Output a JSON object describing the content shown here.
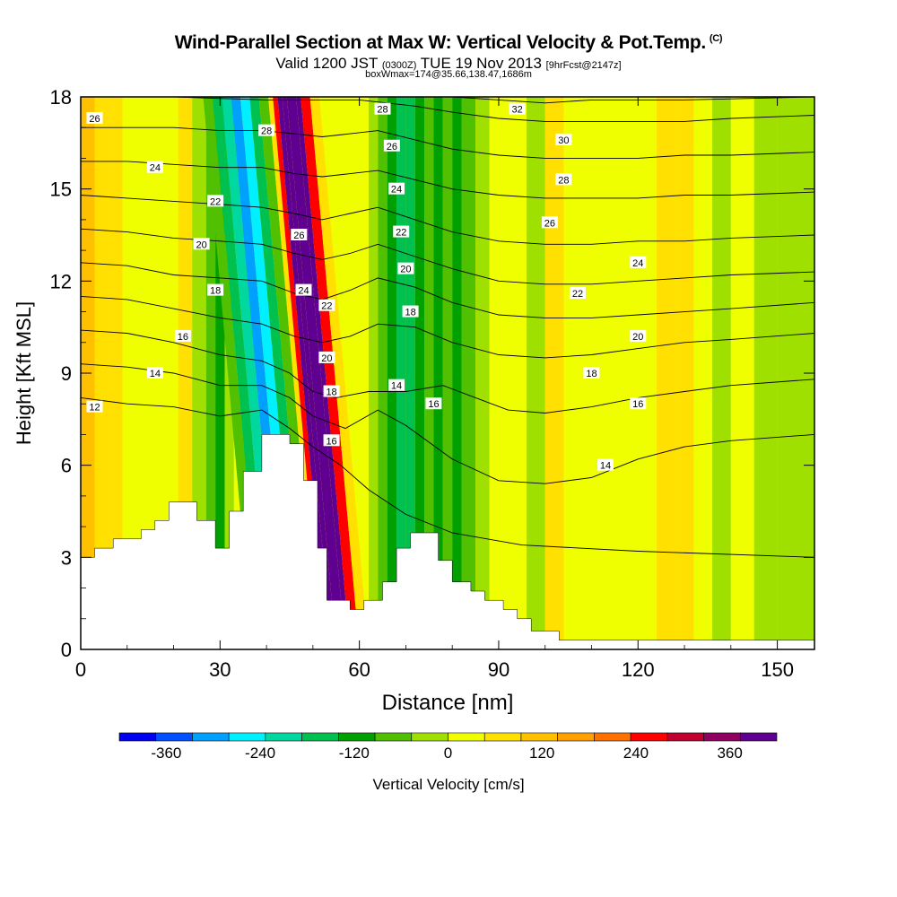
{
  "chart_data": {
    "type": "heatmap",
    "title": "Wind-Parallel Section at Max W: Vertical Velocity & Pot.Temp.",
    "title_mark": "(C)",
    "subtitle_main_1": "Valid 1200 JST",
    "subtitle_small_1": "(0300Z)",
    "subtitle_main_2": "TUE 19 Nov 2013",
    "subtitle_small_2": "[9hrFcst@2147z]",
    "subtitle2": "boxWmax=174@35.66,138.47,1686m",
    "xlabel": "Distance [nm]",
    "ylabel": "Height [Kft MSL]",
    "xlim": [
      0,
      158
    ],
    "ylim": [
      0,
      18
    ],
    "xticks": [
      "0",
      "30",
      "60",
      "90",
      "120",
      "150"
    ],
    "yticks": [
      "0",
      "3",
      "6",
      "9",
      "12",
      "15",
      "18"
    ],
    "colorbar": {
      "label": "Vertical Velocity [cm/s]",
      "tick_labels": [
        "-360",
        "-240",
        "-120",
        "0",
        "120",
        "240",
        "360"
      ],
      "colors": [
        "#0000f0",
        "#0050ff",
        "#00a0ff",
        "#00f0ff",
        "#00d8a0",
        "#00c050",
        "#00a000",
        "#50c000",
        "#a0e000",
        "#f0ff00",
        "#ffe000",
        "#ffc000",
        "#ffa000",
        "#ff7000",
        "#ff0000",
        "#c00030",
        "#900060",
        "#600090"
      ]
    },
    "velocity_columns": [
      {
        "x": 0,
        "w": 3
      },
      {
        "x": 3,
        "w": 2
      },
      {
        "x": 6,
        "w": 2
      },
      {
        "x": 9,
        "w": 1
      },
      {
        "x": 12,
        "w": 1
      },
      {
        "x": 15,
        "w": 1
      },
      {
        "x": 18,
        "w": 1
      },
      {
        "x": 21,
        "w": 2
      },
      {
        "x": 24,
        "w": 0
      },
      {
        "x": 27,
        "w": -1
      },
      {
        "x": 29,
        "w": -2
      },
      {
        "x": 31,
        "w": 0
      },
      {
        "x": 33,
        "w": 1
      },
      {
        "x": 35,
        "w": 0
      },
      {
        "x": 37,
        "w": -1
      },
      {
        "x": 39,
        "w": -3
      },
      {
        "x": 41,
        "w": -4
      },
      {
        "x": 43,
        "w": -6
      },
      {
        "x": 45,
        "w": -5
      },
      {
        "x": 47,
        "w": -3
      },
      {
        "x": 49,
        "w": -1
      },
      {
        "x": 51,
        "w": 2
      },
      {
        "x": 52,
        "w": 6
      },
      {
        "x": 53,
        "w": 10
      },
      {
        "x": 54,
        "w": 14
      },
      {
        "x": 55,
        "w": 16
      },
      {
        "x": 57,
        "w": 12
      },
      {
        "x": 58,
        "w": 6
      },
      {
        "x": 60,
        "w": 2
      },
      {
        "x": 62,
        "w": 0
      },
      {
        "x": 64,
        "w": -1
      },
      {
        "x": 66,
        "w": -2
      },
      {
        "x": 68,
        "w": -3
      },
      {
        "x": 70,
        "w": -3
      },
      {
        "x": 72,
        "w": -2
      },
      {
        "x": 74,
        "w": -1
      },
      {
        "x": 76,
        "w": -2
      },
      {
        "x": 78,
        "w": -1
      },
      {
        "x": 80,
        "w": -2
      },
      {
        "x": 82,
        "w": -1
      },
      {
        "x": 85,
        "w": 0
      },
      {
        "x": 88,
        "w": 1
      },
      {
        "x": 92,
        "w": 1
      },
      {
        "x": 96,
        "w": 0
      },
      {
        "x": 100,
        "w": 2
      },
      {
        "x": 104,
        "w": 1
      },
      {
        "x": 108,
        "w": 1
      },
      {
        "x": 112,
        "w": 1
      },
      {
        "x": 116,
        "w": 1
      },
      {
        "x": 120,
        "w": 1
      },
      {
        "x": 124,
        "w": 2
      },
      {
        "x": 128,
        "w": 2
      },
      {
        "x": 132,
        "w": 1
      },
      {
        "x": 136,
        "w": 0
      },
      {
        "x": 140,
        "w": 1
      },
      {
        "x": 145,
        "w": 0
      },
      {
        "x": 150,
        "w": 0
      },
      {
        "x": 155,
        "w": 0
      }
    ],
    "terrain": [
      {
        "x": 0,
        "h": 3.0
      },
      {
        "x": 3,
        "h": 3.3
      },
      {
        "x": 7,
        "h": 3.6
      },
      {
        "x": 13,
        "h": 3.9
      },
      {
        "x": 16,
        "h": 4.2
      },
      {
        "x": 19,
        "h": 4.8
      },
      {
        "x": 25,
        "h": 4.2
      },
      {
        "x": 29,
        "h": 3.3
      },
      {
        "x": 32,
        "h": 4.5
      },
      {
        "x": 35,
        "h": 5.8
      },
      {
        "x": 39,
        "h": 7.0
      },
      {
        "x": 45,
        "h": 6.7
      },
      {
        "x": 48,
        "h": 5.5
      },
      {
        "x": 51,
        "h": 3.3
      },
      {
        "x": 53,
        "h": 1.6
      },
      {
        "x": 58,
        "h": 1.3
      },
      {
        "x": 61,
        "h": 1.6
      },
      {
        "x": 65,
        "h": 2.2
      },
      {
        "x": 68,
        "h": 3.3
      },
      {
        "x": 71,
        "h": 3.8
      },
      {
        "x": 77,
        "h": 2.9
      },
      {
        "x": 80,
        "h": 2.2
      },
      {
        "x": 84,
        "h": 1.9
      },
      {
        "x": 87,
        "h": 1.6
      },
      {
        "x": 91,
        "h": 1.3
      },
      {
        "x": 94,
        "h": 1.0
      },
      {
        "x": 97,
        "h": 0.6
      },
      {
        "x": 103,
        "h": 0.3
      },
      {
        "x": 158,
        "h": 0.3
      }
    ],
    "isentropes": [
      {
        "label": "12",
        "points": [
          [
            0,
            8.2
          ],
          [
            10,
            8.0
          ],
          [
            20,
            7.9
          ],
          [
            30,
            7.6
          ],
          [
            39,
            7.8
          ],
          [
            45,
            7.2
          ],
          [
            50,
            6.6
          ],
          [
            56,
            6.0
          ],
          [
            62,
            5.2
          ],
          [
            70,
            4.4
          ],
          [
            80,
            3.8
          ],
          [
            95,
            3.4
          ],
          [
            120,
            3.2
          ],
          [
            158,
            3.0
          ]
        ]
      },
      {
        "label": "14",
        "points": [
          [
            0,
            9.3
          ],
          [
            10,
            9.2
          ],
          [
            20,
            9.0
          ],
          [
            30,
            8.6
          ],
          [
            39,
            8.6
          ],
          [
            45,
            8.2
          ],
          [
            50,
            7.6
          ],
          [
            57,
            7.2
          ],
          [
            64,
            7.8
          ],
          [
            70,
            7.3
          ],
          [
            80,
            6.2
          ],
          [
            90,
            5.5
          ],
          [
            100,
            5.4
          ],
          [
            110,
            5.6
          ],
          [
            120,
            6.2
          ],
          [
            130,
            6.6
          ],
          [
            140,
            6.8
          ],
          [
            158,
            7.0
          ]
        ]
      },
      {
        "label": "16",
        "points": [
          [
            0,
            10.4
          ],
          [
            10,
            10.3
          ],
          [
            20,
            10.0
          ],
          [
            30,
            9.6
          ],
          [
            39,
            9.4
          ],
          [
            45,
            9.0
          ],
          [
            50,
            8.4
          ],
          [
            55,
            8.2
          ],
          [
            62,
            8.4
          ],
          [
            70,
            8.4
          ],
          [
            78,
            8.6
          ],
          [
            85,
            8.2
          ],
          [
            92,
            7.8
          ],
          [
            100,
            7.7
          ],
          [
            110,
            7.9
          ],
          [
            120,
            8.2
          ],
          [
            130,
            8.4
          ],
          [
            140,
            8.6
          ],
          [
            158,
            8.8
          ]
        ]
      },
      {
        "label": "18",
        "points": [
          [
            0,
            11.5
          ],
          [
            10,
            11.4
          ],
          [
            20,
            11.1
          ],
          [
            30,
            10.8
          ],
          [
            39,
            10.6
          ],
          [
            46,
            10.2
          ],
          [
            52,
            10.0
          ],
          [
            58,
            10.2
          ],
          [
            64,
            10.6
          ],
          [
            72,
            10.5
          ],
          [
            80,
            10.0
          ],
          [
            90,
            9.6
          ],
          [
            100,
            9.5
          ],
          [
            110,
            9.6
          ],
          [
            120,
            9.8
          ],
          [
            130,
            10.0
          ],
          [
            140,
            10.1
          ],
          [
            158,
            10.3
          ]
        ]
      },
      {
        "label": "20",
        "points": [
          [
            0,
            12.6
          ],
          [
            10,
            12.5
          ],
          [
            20,
            12.2
          ],
          [
            30,
            12.1
          ],
          [
            39,
            12.0
          ],
          [
            46,
            11.6
          ],
          [
            52,
            11.4
          ],
          [
            58,
            11.7
          ],
          [
            64,
            12.1
          ],
          [
            72,
            11.8
          ],
          [
            80,
            11.3
          ],
          [
            90,
            10.9
          ],
          [
            100,
            10.8
          ],
          [
            110,
            10.8
          ],
          [
            120,
            10.9
          ],
          [
            130,
            11.0
          ],
          [
            140,
            11.1
          ],
          [
            158,
            11.3
          ]
        ]
      },
      {
        "label": "22",
        "points": [
          [
            0,
            13.7
          ],
          [
            10,
            13.6
          ],
          [
            20,
            13.4
          ],
          [
            30,
            13.3
          ],
          [
            39,
            13.2
          ],
          [
            46,
            12.9
          ],
          [
            52,
            12.7
          ],
          [
            58,
            12.9
          ],
          [
            64,
            13.2
          ],
          [
            72,
            12.8
          ],
          [
            80,
            12.4
          ],
          [
            90,
            12.0
          ],
          [
            100,
            11.9
          ],
          [
            110,
            11.9
          ],
          [
            120,
            12.0
          ],
          [
            130,
            12.1
          ],
          [
            140,
            12.2
          ],
          [
            158,
            12.3
          ]
        ]
      },
      {
        "label": "24",
        "points": [
          [
            0,
            14.8
          ],
          [
            10,
            14.7
          ],
          [
            20,
            14.6
          ],
          [
            30,
            14.5
          ],
          [
            39,
            14.4
          ],
          [
            46,
            14.2
          ],
          [
            52,
            14.0
          ],
          [
            58,
            14.2
          ],
          [
            64,
            14.4
          ],
          [
            72,
            14.0
          ],
          [
            80,
            13.6
          ],
          [
            90,
            13.3
          ],
          [
            100,
            13.2
          ],
          [
            110,
            13.2
          ],
          [
            120,
            13.3
          ],
          [
            130,
            13.3
          ],
          [
            140,
            13.4
          ],
          [
            158,
            13.5
          ]
        ]
      },
      {
        "label": "26",
        "points": [
          [
            0,
            15.9
          ],
          [
            10,
            15.9
          ],
          [
            20,
            15.8
          ],
          [
            30,
            15.7
          ],
          [
            39,
            15.7
          ],
          [
            46,
            15.5
          ],
          [
            52,
            15.4
          ],
          [
            58,
            15.5
          ],
          [
            64,
            15.6
          ],
          [
            72,
            15.3
          ],
          [
            80,
            15.0
          ],
          [
            90,
            14.8
          ],
          [
            100,
            14.7
          ],
          [
            110,
            14.7
          ],
          [
            120,
            14.7
          ],
          [
            130,
            14.8
          ],
          [
            140,
            14.8
          ],
          [
            158,
            14.9
          ]
        ]
      },
      {
        "label": "28",
        "points": [
          [
            0,
            17.0
          ],
          [
            10,
            17.0
          ],
          [
            20,
            17.0
          ],
          [
            30,
            16.9
          ],
          [
            39,
            16.9
          ],
          [
            46,
            16.8
          ],
          [
            52,
            16.7
          ],
          [
            58,
            16.8
          ],
          [
            64,
            16.9
          ],
          [
            72,
            16.6
          ],
          [
            80,
            16.3
          ],
          [
            90,
            16.1
          ],
          [
            100,
            16.0
          ],
          [
            110,
            16.0
          ],
          [
            120,
            16.0
          ],
          [
            130,
            16.1
          ],
          [
            140,
            16.1
          ],
          [
            158,
            16.2
          ]
        ]
      },
      {
        "label": "30",
        "points": [
          [
            0,
            18.0
          ],
          [
            20,
            18.0
          ],
          [
            40,
            17.9
          ],
          [
            52,
            17.9
          ],
          [
            60,
            17.9
          ],
          [
            72,
            17.7
          ],
          [
            80,
            17.5
          ],
          [
            90,
            17.3
          ],
          [
            100,
            17.2
          ],
          [
            110,
            17.2
          ],
          [
            120,
            17.2
          ],
          [
            130,
            17.2
          ],
          [
            140,
            17.3
          ],
          [
            158,
            17.4
          ]
        ]
      },
      {
        "label": "32",
        "points": [
          [
            70,
            18.0
          ],
          [
            80,
            18.0
          ],
          [
            90,
            17.9
          ],
          [
            100,
            17.8
          ],
          [
            110,
            17.9
          ],
          [
            130,
            17.9
          ],
          [
            158,
            18.0
          ]
        ]
      }
    ],
    "contour_labels": [
      {
        "text": "26",
        "x": 3,
        "y": 17.3
      },
      {
        "text": "24",
        "x": 16,
        "y": 15.7
      },
      {
        "text": "22",
        "x": 29,
        "y": 14.6
      },
      {
        "text": "20",
        "x": 26,
        "y": 13.2
      },
      {
        "text": "18",
        "x": 29,
        "y": 11.7
      },
      {
        "text": "16",
        "x": 22,
        "y": 10.2
      },
      {
        "text": "14",
        "x": 16,
        "y": 9.0
      },
      {
        "text": "12",
        "x": 3,
        "y": 7.9
      },
      {
        "text": "28",
        "x": 40,
        "y": 16.9
      },
      {
        "text": "26",
        "x": 47,
        "y": 13.5
      },
      {
        "text": "24",
        "x": 48,
        "y": 11.7
      },
      {
        "text": "22",
        "x": 53,
        "y": 11.2
      },
      {
        "text": "20",
        "x": 53,
        "y": 9.5
      },
      {
        "text": "18",
        "x": 54,
        "y": 8.4
      },
      {
        "text": "16",
        "x": 54,
        "y": 6.8
      },
      {
        "text": "28",
        "x": 65,
        "y": 17.6
      },
      {
        "text": "26",
        "x": 67,
        "y": 16.4
      },
      {
        "text": "24",
        "x": 68,
        "y": 15.0
      },
      {
        "text": "22",
        "x": 69,
        "y": 13.6
      },
      {
        "text": "20",
        "x": 70,
        "y": 12.4
      },
      {
        "text": "18",
        "x": 71,
        "y": 11.0
      },
      {
        "text": "14",
        "x": 68,
        "y": 8.6
      },
      {
        "text": "16",
        "x": 76,
        "y": 8.0
      },
      {
        "text": "32",
        "x": 94,
        "y": 17.6
      },
      {
        "text": "30",
        "x": 104,
        "y": 16.6
      },
      {
        "text": "28",
        "x": 104,
        "y": 15.3
      },
      {
        "text": "26",
        "x": 101,
        "y": 13.9
      },
      {
        "text": "24",
        "x": 120,
        "y": 12.6
      },
      {
        "text": "22",
        "x": 107,
        "y": 11.6
      },
      {
        "text": "20",
        "x": 120,
        "y": 10.2
      },
      {
        "text": "18",
        "x": 110,
        "y": 9.0
      },
      {
        "text": "16",
        "x": 120,
        "y": 8.0
      },
      {
        "text": "14",
        "x": 113,
        "y": 6.0
      }
    ]
  }
}
